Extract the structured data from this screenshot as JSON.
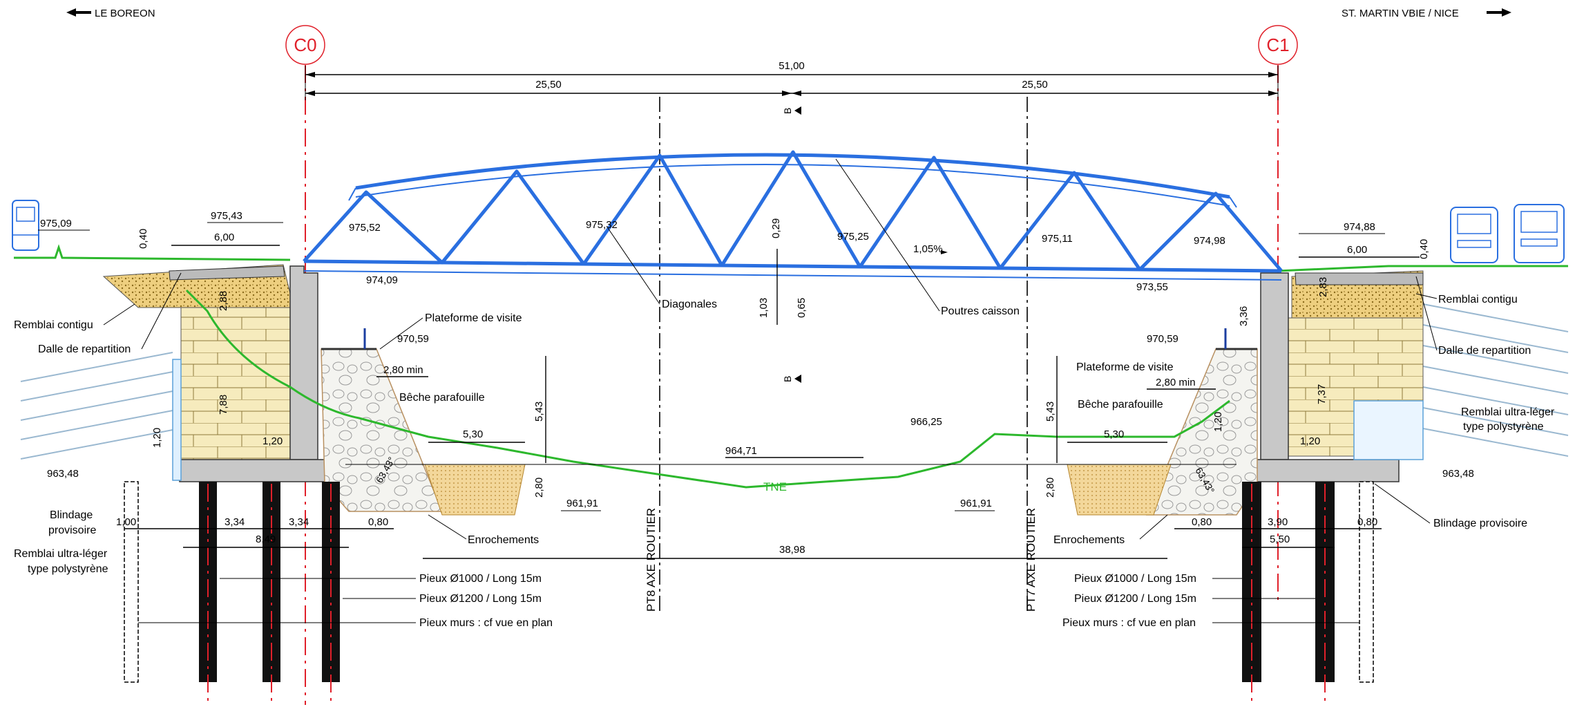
{
  "directions": {
    "left": "LE BOREON",
    "right": "ST. MARTIN VBIE / NICE"
  },
  "abutments": {
    "c0": "C0",
    "c1": "C1"
  },
  "span": {
    "total": "51,00",
    "half_left": "25,50",
    "half_right": "25,50",
    "section_mark": "B"
  },
  "levels": {
    "l975_09": "975,09",
    "l975_43": "975,43",
    "l975_52": "975,52",
    "l975_32": "975,32",
    "l975_25": "975,25",
    "l975_11": "975,11",
    "l974_98": "974,98",
    "l974_88": "974,88",
    "l974_09": "974,09",
    "l973_55": "973,55",
    "l970_59_left": "970,59",
    "l970_59_right": "970,59",
    "l966_25": "966,25",
    "l964_71": "964,71",
    "l963_48_left": "963,48",
    "l963_48_right": "963,48",
    "l961_91_left": "961,91",
    "l961_91_right": "961,91"
  },
  "dims": {
    "d0_40_left": "0,40",
    "d6_00_left": "6,00",
    "d2_88": "2,88",
    "d7_88": "7,88",
    "d1_20_left_v": "1,20",
    "d1_20_left_h": "1,20",
    "d2_80min_left": "2,80 min",
    "d5_43_left": "5,43",
    "d5_30_left": "5,30",
    "d2_80_left": "2,80",
    "d63_43_left": "63,43°",
    "d1_00": "1,00",
    "d3_34_a": "3,34",
    "d3_34_b": "3,34",
    "d0_80_left": "0,80",
    "d8_49": "8,49",
    "d38_98": "38,98",
    "d0_29": "0,29",
    "d1_03": "1,03",
    "d0_65": "0,65",
    "slope": "1,05%",
    "d0_40_right": "0,40",
    "d6_00_right": "6,00",
    "d2_83": "2,83",
    "d3_36": "3,36",
    "d7_37": "7,37",
    "d1_20_right_v": "1,20",
    "d1_20_right_h": "1,20",
    "d2_80min_right": "2,80 min",
    "d5_43_right": "5,43",
    "d5_30_right": "5,30",
    "d2_80_right": "2,80",
    "d63_43_right": "63,43°",
    "d0_80_right_a": "0,80",
    "d3_90": "3,90",
    "d0_80_right_b": "0,80",
    "d5_50": "5,50"
  },
  "labels": {
    "remblai_contigu_left": "Remblai contigu",
    "dalle_left": "Dalle de repartition",
    "plateforme_left": "Plateforme de visite",
    "beche_left": "Bêche parafouille",
    "blindage_left_1": "Blindage",
    "blindage_left_2": "provisoire",
    "remblai_ul_left_1": "Remblai ultra-léger",
    "remblai_ul_left_2": "type polystyrène",
    "enrochements_left": "Enrochements",
    "diagonales": "Diagonales",
    "poutres": "Poutres caisson",
    "tne": "TNE",
    "pt8": "PT8 AXE ROUTIER",
    "pt7": "PT7 AXE ROUTIER",
    "pieux1000_left": "Pieux Ø1000 / Long 15m",
    "pieux1200_left": "Pieux Ø1200 / Long 15m",
    "pieux_murs_left": "Pieux murs : cf vue en plan",
    "pieux1000_right": "Pieux Ø1000 / Long 15m",
    "pieux1200_right": "Pieux Ø1200 / Long 15m",
    "pieux_murs_right": "Pieux murs : cf vue en plan",
    "remblai_contigu_right": "Remblai contigu",
    "dalle_right": "Dalle de repartition",
    "plateforme_right": "Plateforme de visite",
    "beche_right": "Bêche parafouille",
    "remblai_ul_right_1": "Remblai ultra-léger",
    "remblai_ul_right_2": "type polystyrène",
    "blindage_right": "Blindage provisoire",
    "enrochements_right": "Enrochements"
  },
  "colors": {
    "truss": "#2a6fe0",
    "ground_line": "#2db82d",
    "abutment_axis": "#e0202a",
    "fill_gravel": "#e8c87a",
    "brick": "#f3e6b0"
  }
}
